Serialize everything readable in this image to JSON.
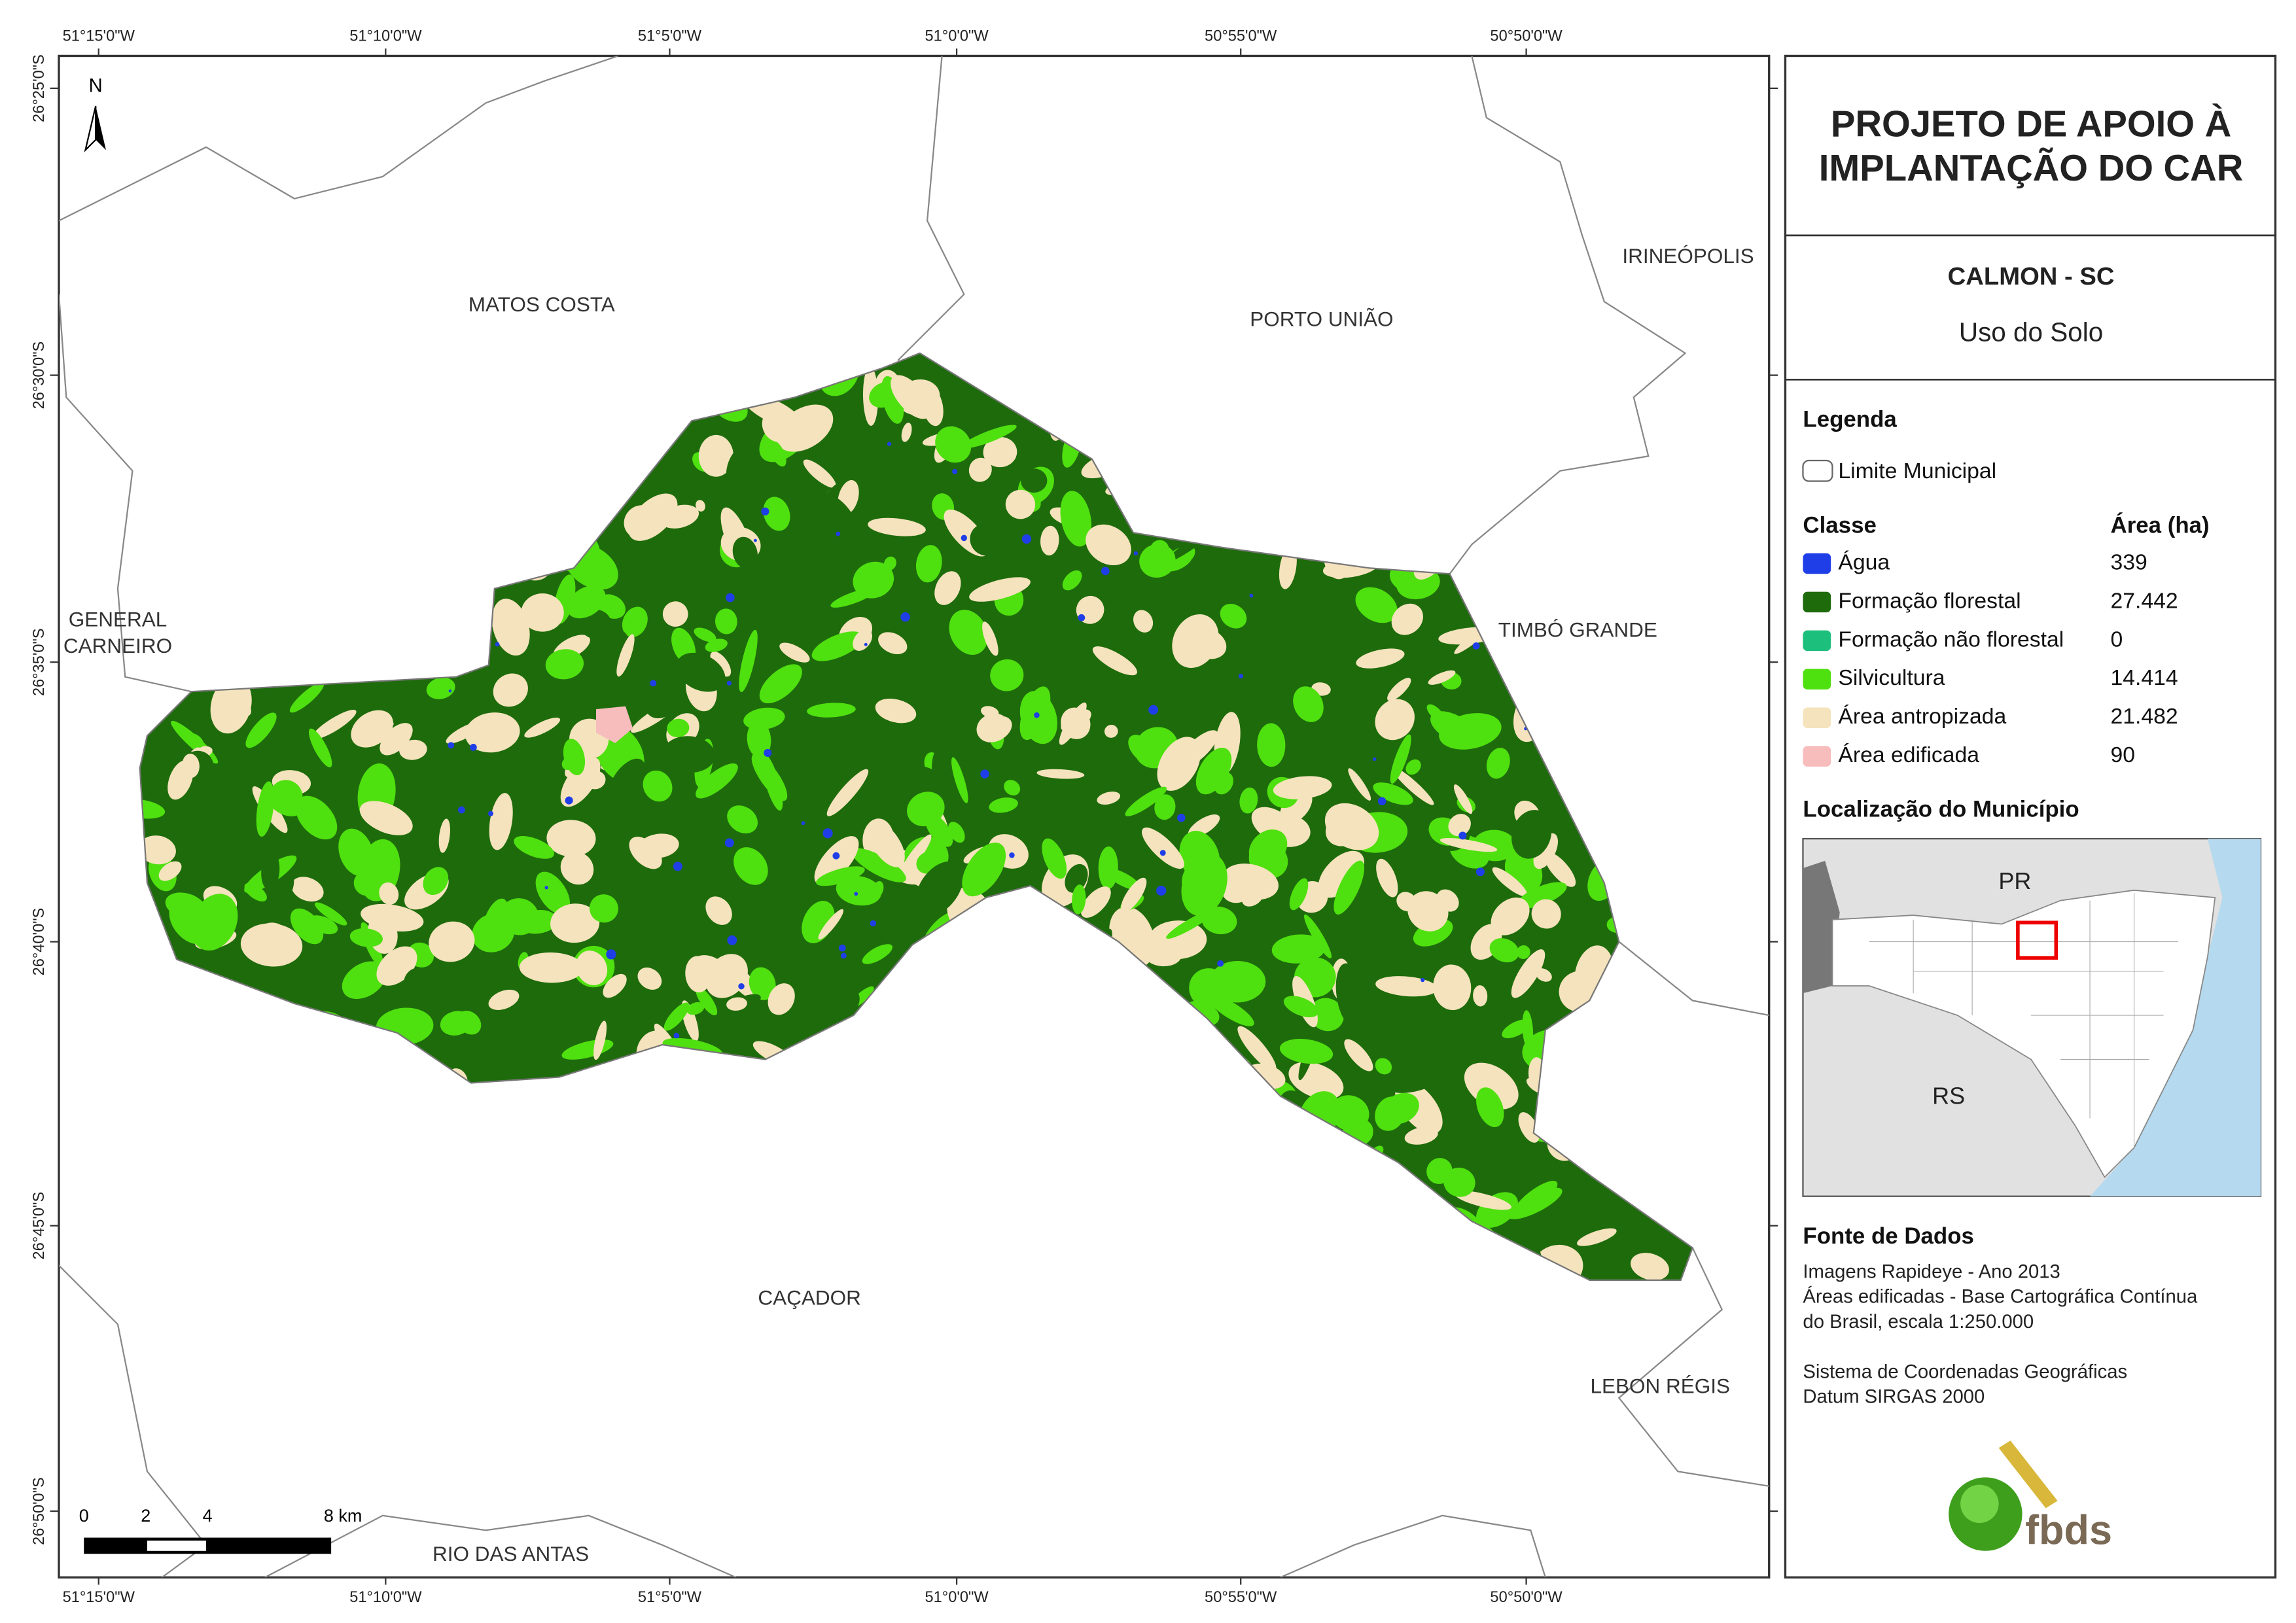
{
  "map": {
    "north": "N",
    "x_labels": [
      "51°15'0\"W",
      "51°10'0\"W",
      "51°5'0\"W",
      "51°0'0\"W",
      "50°55'0\"W",
      "50°50'0\"W"
    ],
    "y_labels": [
      "26°25'0\"S",
      "26°30'0\"S",
      "26°35'0\"S",
      "26°40'0\"S",
      "26°45'0\"S",
      "26°50'0\"S"
    ],
    "places": [
      {
        "lines": [
          "MATOS COSTA"
        ]
      },
      {
        "lines": [
          "PORTO UNIÃO"
        ]
      },
      {
        "lines": [
          "IRINEÓPOLIS"
        ]
      },
      {
        "lines": [
          "GENERAL",
          "CARNEIRO"
        ]
      },
      {
        "lines": [
          "TIMBÓ GRANDE"
        ]
      },
      {
        "lines": [
          "CAÇADOR"
        ]
      },
      {
        "lines": [
          "LEBON RÉGIS"
        ]
      },
      {
        "lines": [
          "RIO DAS ANTAS"
        ]
      }
    ],
    "scale": [
      "0",
      "2",
      "4",
      "8 km"
    ]
  },
  "header": {
    "title": [
      "PROJETO DE APOIO À",
      "IMPLANTAÇÃO DO CAR"
    ],
    "municipality": "CALMON - SC",
    "subtitle": "Uso do Solo"
  },
  "legend": {
    "heading": "Legenda",
    "boundary": "Limite Municipal",
    "class_heading": "Classe",
    "area_heading": "Área (ha)",
    "classes": [
      {
        "name": "Água",
        "color": "#1f3ee8",
        "area": "339"
      },
      {
        "name": "Formação florestal",
        "color": "#1e6b0c",
        "area": "27.442"
      },
      {
        "name": "Formação não florestal",
        "color": "#1dbf7c",
        "area": "0"
      },
      {
        "name": "Silvicultura",
        "color": "#4fe00f",
        "area": "14.414"
      },
      {
        "name": "Área antropizada",
        "color": "#f5e3bd",
        "area": "21.482"
      },
      {
        "name": "Área edificada",
        "color": "#f7bcbc",
        "area": "90"
      }
    ]
  },
  "locator": {
    "heading": "Localização do Município",
    "labels": [
      "PR",
      "RS"
    ]
  },
  "sources": {
    "heading": "Fonte de Dados",
    "lines": [
      "Imagens Rapideye - Ano 2013",
      "Áreas edificadas - Base Cartográfica Contínua",
      "do Brasil, escala 1:250.000",
      "",
      "Sistema de Coordenadas Geográficas",
      "Datum SIRGAS 2000"
    ]
  },
  "logo": "fbds"
}
